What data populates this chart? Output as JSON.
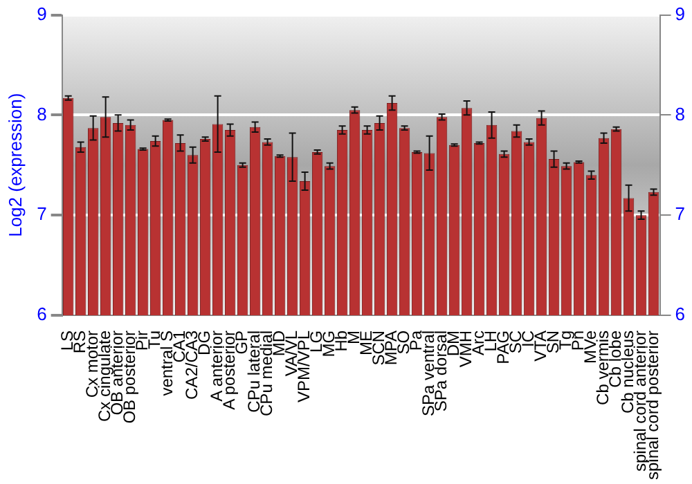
{
  "chart_data": {
    "type": "bar",
    "ylabel": "Log2 (expression)",
    "categories": [
      "LS",
      "RS",
      "Cx motor",
      "Cx cingulate",
      "OB anterior",
      "OB posterior",
      "Pir",
      "Tu",
      "ventral S",
      "CA1",
      "CA2/CA3",
      "DG",
      "A anterior",
      "A posterior",
      "GP",
      "CPu lateral",
      "CPu medial",
      "MD",
      "VA/VL",
      "VPM/VPL",
      "LG",
      "MG",
      "Hb",
      "M",
      "ME",
      "SCN",
      "MPA",
      "SO",
      "Pa",
      "SPa ventral",
      "SPa dorsal",
      "DM",
      "VMH",
      "Arc",
      "LH",
      "PAG",
      "SC",
      "IC",
      "VTA",
      "SN",
      "Tg",
      "Pn",
      "MVe",
      "Cb vermis",
      "Cb lobe",
      "Cb nucleus",
      "spinal cord anterior",
      "spinal cord posterior"
    ],
    "values": [
      8.17,
      7.68,
      7.87,
      7.98,
      7.92,
      7.9,
      7.66,
      7.74,
      7.95,
      7.72,
      7.6,
      7.76,
      7.91,
      7.85,
      7.5,
      7.88,
      7.73,
      7.59,
      7.58,
      7.34,
      7.63,
      7.49,
      7.85,
      8.05,
      7.85,
      7.92,
      8.12,
      7.87,
      7.63,
      7.62,
      7.98,
      7.7,
      8.07,
      7.72,
      7.9,
      7.61,
      7.84,
      7.73,
      7.97,
      7.56,
      7.49,
      7.53,
      7.4,
      7.77,
      7.86,
      7.17,
      7.0,
      7.23
    ],
    "errors": [
      0.02,
      0.05,
      0.12,
      0.2,
      0.08,
      0.05,
      0.01,
      0.05,
      0.01,
      0.08,
      0.08,
      0.02,
      0.28,
      0.06,
      0.02,
      0.05,
      0.03,
      0.01,
      0.24,
      0.09,
      0.02,
      0.03,
      0.04,
      0.03,
      0.04,
      0.07,
      0.07,
      0.02,
      0.01,
      0.17,
      0.03,
      0.01,
      0.07,
      0.01,
      0.13,
      0.03,
      0.06,
      0.03,
      0.07,
      0.08,
      0.03,
      0.01,
      0.04,
      0.05,
      0.02,
      0.13,
      0.04,
      0.03
    ],
    "color": "#b83232",
    "ylim": [
      6,
      9
    ],
    "yticks": [
      6,
      7,
      8,
      9
    ],
    "y2lim": [
      6,
      9
    ],
    "y2ticks": [
      6,
      7,
      8,
      9
    ],
    "grid": "y",
    "legend": false
  }
}
